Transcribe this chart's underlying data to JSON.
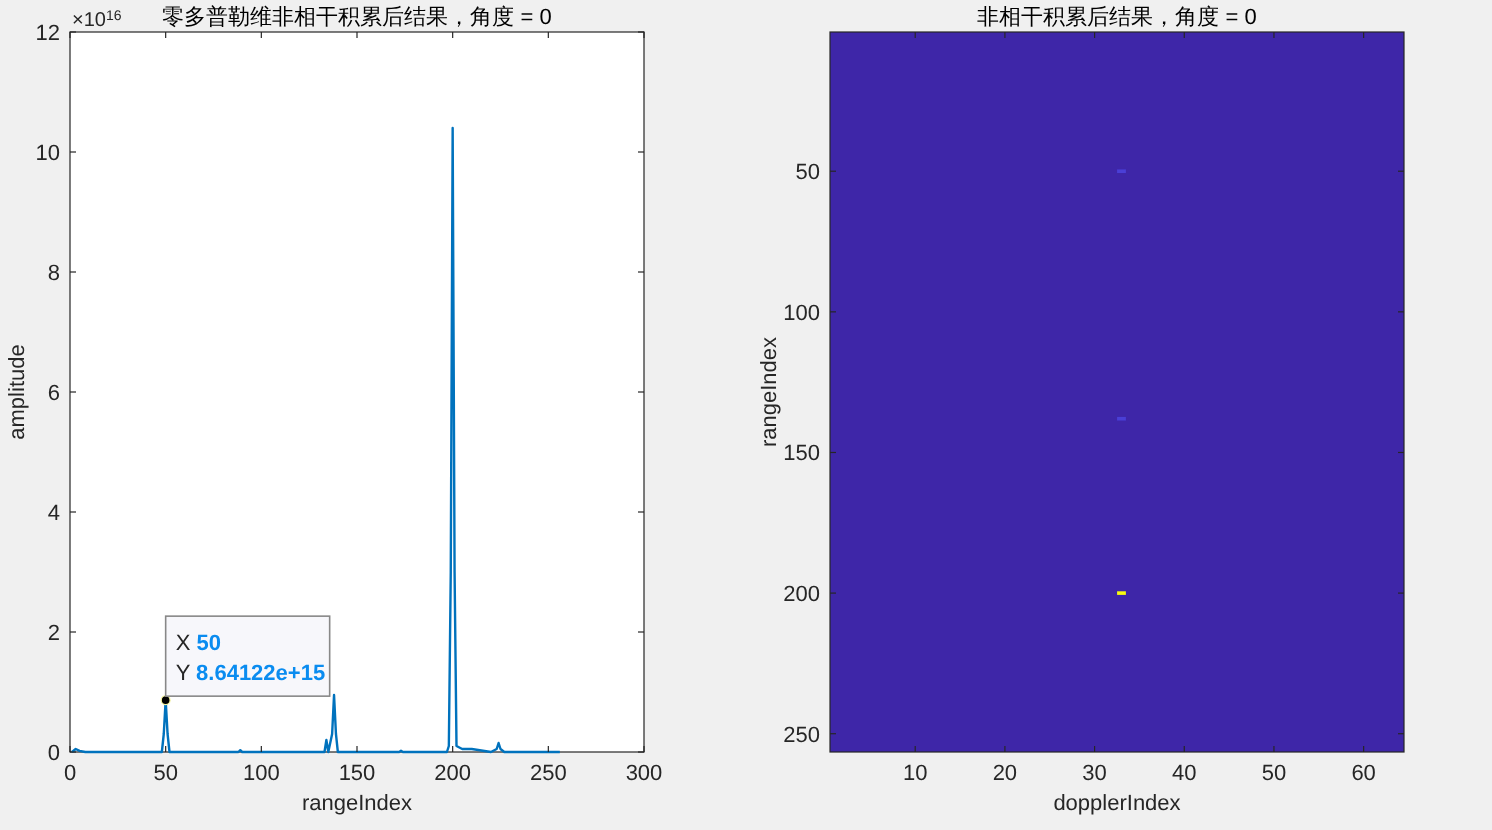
{
  "chart_data": [
    {
      "type": "line",
      "title": "零多普勒维非相干积累后结果，角度 = 0",
      "xlabel": "rangeIndex",
      "ylabel": "amplitude",
      "xlim": [
        0,
        300
      ],
      "xticks": [
        0,
        50,
        100,
        150,
        200,
        250,
        300
      ],
      "ylim": [
        0,
        12
      ],
      "yticks": [
        0,
        2,
        4,
        6,
        8,
        10,
        12
      ],
      "annotations": [
        "×10$^{16}$",
        {
          "text": "X 50\nY 8.64122e+15",
          "x": 50,
          "y": 0.864122
        }
      ],
      "series": [
        {
          "color": "#0072bd",
          "x": [
            1,
            3,
            5,
            8,
            48,
            49,
            50,
            51,
            52,
            88,
            89,
            90,
            133,
            134,
            135,
            137,
            138,
            139,
            140,
            172,
            173,
            174,
            197,
            198,
            199,
            200,
            201,
            202,
            205,
            210,
            220,
            223,
            224,
            225,
            227,
            256
          ],
          "values": [
            0,
            0.05,
            0.02,
            0,
            0,
            0.3,
            0.864122,
            0.3,
            0,
            0,
            0.03,
            0,
            0,
            0.2,
            0,
            0.3,
            0.95,
            0.3,
            0,
            0,
            0.02,
            0,
            0,
            0.1,
            3,
            10.4,
            3,
            0.1,
            0.05,
            0.05,
            0,
            0.05,
            0.15,
            0.05,
            0,
            0
          ]
        }
      ]
    },
    {
      "type": "scatter",
      "title": "非相干积累后结果，角度 = 0",
      "xlabel": "dopplerIndex",
      "ylabel": "rangeIndex",
      "marker": "square",
      "xlim": [
        0.5,
        64.5
      ],
      "xticks": [
        10,
        20,
        30,
        40,
        50,
        60
      ],
      "ylim": [
        256.5,
        0.5
      ],
      "yticks": [
        50,
        100,
        150,
        200,
        250
      ],
      "series": [
        {
          "x": [
            33,
            33,
            33
          ],
          "values": [
            50,
            138,
            200
          ],
          "colors": [
            "#4a3fd6",
            "#4a3fd6",
            "#f9fb0e"
          ]
        }
      ]
    }
  ]
}
